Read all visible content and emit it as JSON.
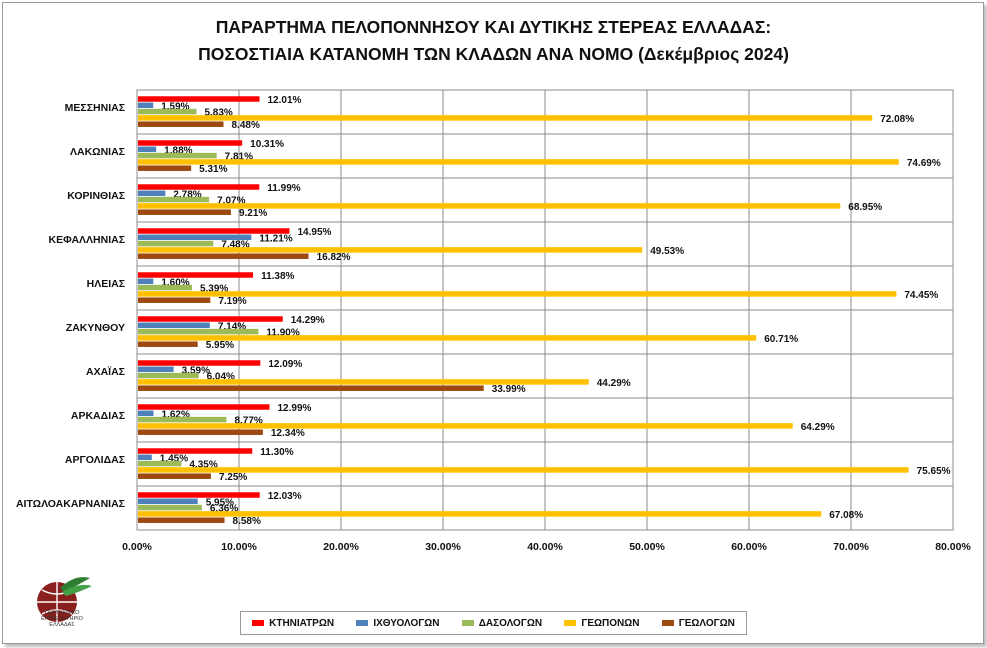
{
  "title_lines": [
    "ΠΑΡΑΡΤΗΜΑ ΠΕΛΟΠΟΝΝΗΣΟΥ ΚΑΙ ΔΥΤΙΚΗΣ ΣΤΕΡΕΑΣ ΕΛΛΑΔΑΣ:",
    "ΠΟΣΟΣΤΙΑΙΑ ΚΑΤΑΝΟΜΗ ΤΩΝ ΚΛΑΔΩΝ ΑΝΑ ΝΟΜΟ (Δεκέμβριος 2024)"
  ],
  "logo": {
    "text_lines": [
      "ΓΕΩΤΕΧΝΙΚΟ",
      "ΕΠΙΜΕΛΗΤΗΡΙΟ",
      "ΕΛΛΑΔΑΣ"
    ]
  },
  "chart_data": {
    "type": "bar",
    "orientation": "horizontal",
    "title": "ΠΑΡΑΡΤΗΜΑ ΠΕΛΟΠΟΝΝΗΣΟΥ ΚΑΙ ΔΥΤΙΚΗΣ ΣΤΕΡΕΑΣ ΕΛΛΑΔΑΣ: ΠΟΣΟΣΤΙΑΙΑ ΚΑΤΑΝΟΜΗ ΤΩΝ ΚΛΑΔΩΝ ΑΝΑ ΝΟΜΟ (Δεκέμβριος 2024)",
    "categories": [
      "ΜΕΣΣΗΝΙΑΣ",
      "ΛΑΚΩΝΙΑΣ",
      "ΚΟΡΙΝΘΙΑΣ",
      "ΚΕΦΑΛΛΗΝΙΑΣ",
      "ΗΛΕΙΑΣ",
      "ΖΑΚΥΝΘΟΥ",
      "ΑΧΑΪΑΣ",
      "ΑΡΚΑΔΙΑΣ",
      "ΑΡΓΟΛΙΔΑΣ",
      "ΑΙΤΩΛΟΑΚΑΡΝΑΝΙΑΣ"
    ],
    "series": [
      {
        "name": "ΚΤΗΝΙΑΤΡΩΝ",
        "color": "#ff0000",
        "values": [
          12.01,
          10.31,
          11.99,
          14.95,
          11.38,
          14.29,
          12.09,
          12.99,
          11.3,
          12.03
        ]
      },
      {
        "name": "ΙΧΘΥΟΛΟΓΩΝ",
        "color": "#4f81bd",
        "values": [
          1.59,
          1.88,
          2.78,
          11.21,
          1.6,
          7.14,
          3.59,
          1.62,
          1.45,
          5.95
        ]
      },
      {
        "name": "ΔΑΣΟΛΟΓΩΝ",
        "color": "#9bbb59",
        "values": [
          5.83,
          7.81,
          7.07,
          7.48,
          5.39,
          11.9,
          6.04,
          8.77,
          4.35,
          6.36
        ]
      },
      {
        "name": "ΓΕΩΠΟΝΩΝ",
        "color": "#ffc000",
        "values": [
          72.08,
          74.69,
          68.95,
          49.53,
          74.45,
          60.71,
          44.29,
          64.29,
          75.65,
          67.08
        ]
      },
      {
        "name": "ΓΕΩΛΟΓΩΝ",
        "color": "#9c4a10",
        "values": [
          8.48,
          5.31,
          9.21,
          16.82,
          7.19,
          5.95,
          33.99,
          12.34,
          7.25,
          8.58
        ]
      }
    ],
    "xlim": [
      0,
      80
    ],
    "xticks": [
      "0.00%",
      "10.00%",
      "20.00%",
      "30.00%",
      "40.00%",
      "50.00%",
      "60.00%",
      "70.00%",
      "80.00%"
    ],
    "value_suffix": "%",
    "legend_position": "bottom",
    "grid": true
  }
}
